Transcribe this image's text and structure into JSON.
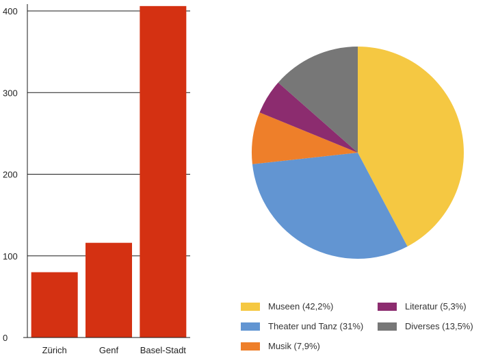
{
  "chart_data": [
    {
      "type": "bar",
      "categories": [
        "Zürich",
        "Genf",
        "Basel-Stadt"
      ],
      "values": [
        80,
        116,
        406
      ],
      "yticks": [
        0,
        100,
        200,
        300,
        400
      ],
      "ylim": [
        0,
        400
      ],
      "color": "#d43112",
      "grid": true
    },
    {
      "type": "pie",
      "slices": [
        {
          "label": "Museen (42,2%)",
          "value": 42.2,
          "color": "#f5c842"
        },
        {
          "label": "Theater und Tanz (31%)",
          "value": 31.0,
          "color": "#6295d2"
        },
        {
          "label": "Musik (7,9%)",
          "value": 7.9,
          "color": "#ee7f2a"
        },
        {
          "label": "Literatur (5,3%)",
          "value": 5.3,
          "color": "#8c2c6f"
        },
        {
          "label": "Diverses (13,5%)",
          "value": 13.5,
          "color": "#777777"
        }
      ],
      "legend_position": "bottom",
      "legend_order": [
        0,
        3,
        1,
        4,
        2
      ]
    }
  ]
}
